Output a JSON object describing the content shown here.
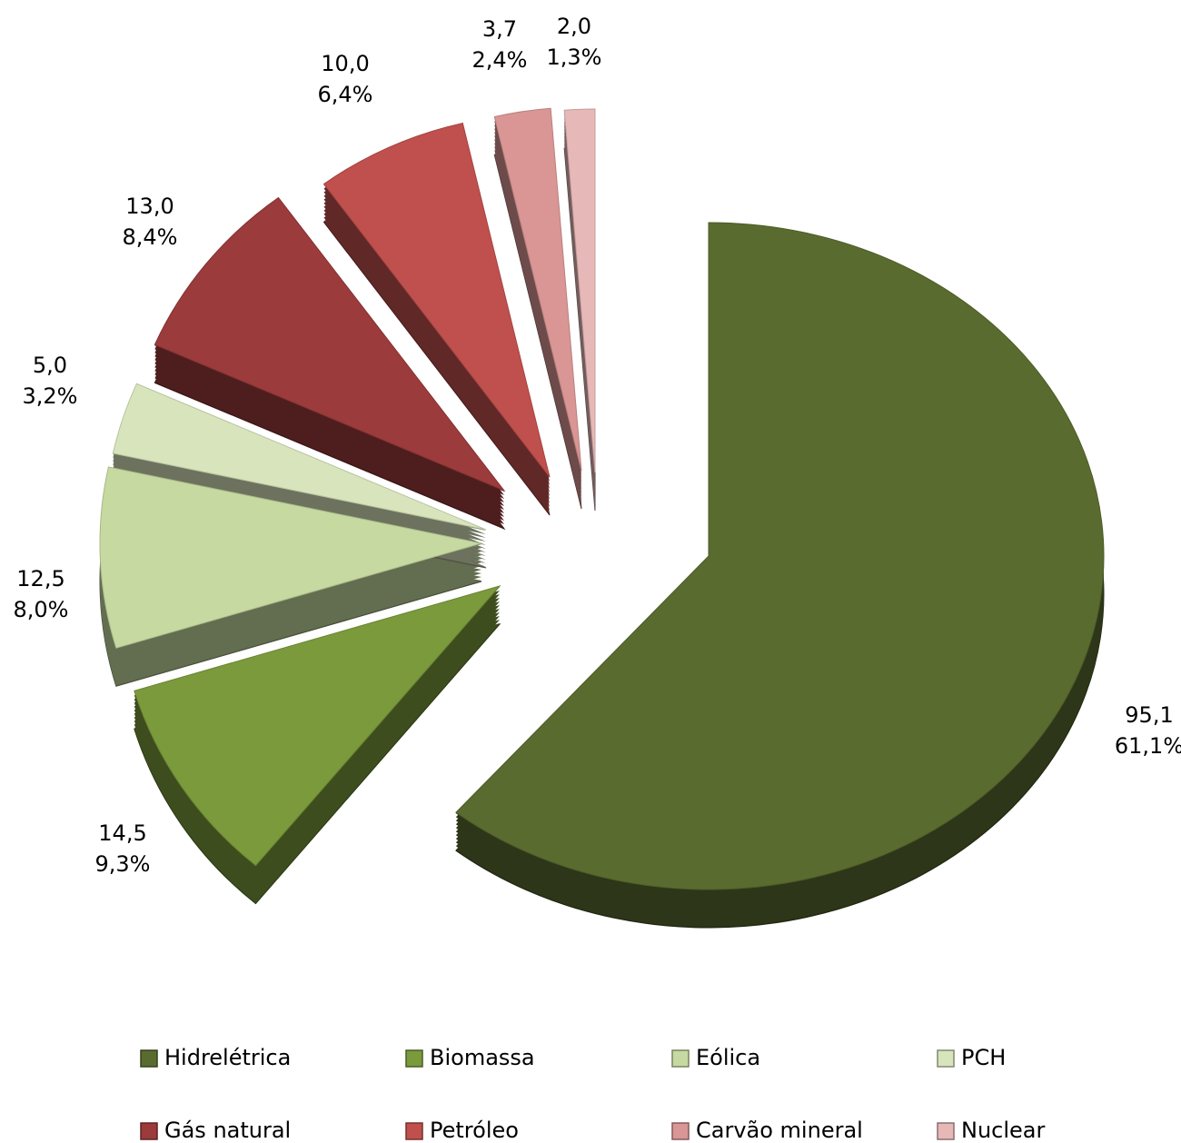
{
  "chart_data": {
    "type": "pie",
    "categories": [
      "Hidrelétrica",
      "Biomassa",
      "Eólica",
      "PCH",
      "Gás natural",
      "Petróleo",
      "Carvão mineral",
      "Nuclear"
    ],
    "values": [
      95.1,
      14.5,
      12.5,
      5.0,
      13.0,
      10.0,
      3.7,
      2.0
    ],
    "value_labels": [
      "95,1",
      "14,5",
      "12,5",
      "5,0",
      "13,0",
      "10,0",
      "3,7",
      "2,0"
    ],
    "percent_labels": [
      "61,1%",
      "9,3%",
      "8,0%",
      "3,2%",
      "8,4%",
      "6,4%",
      "2,4%",
      "1,3%"
    ],
    "colors": [
      "#5a6b2f",
      "#7b9a3c",
      "#c6d9a0",
      "#d8e4bc",
      "#9b3b3b",
      "#c0504d",
      "#d99694",
      "#e6b9b8"
    ],
    "legend": "bottom"
  }
}
